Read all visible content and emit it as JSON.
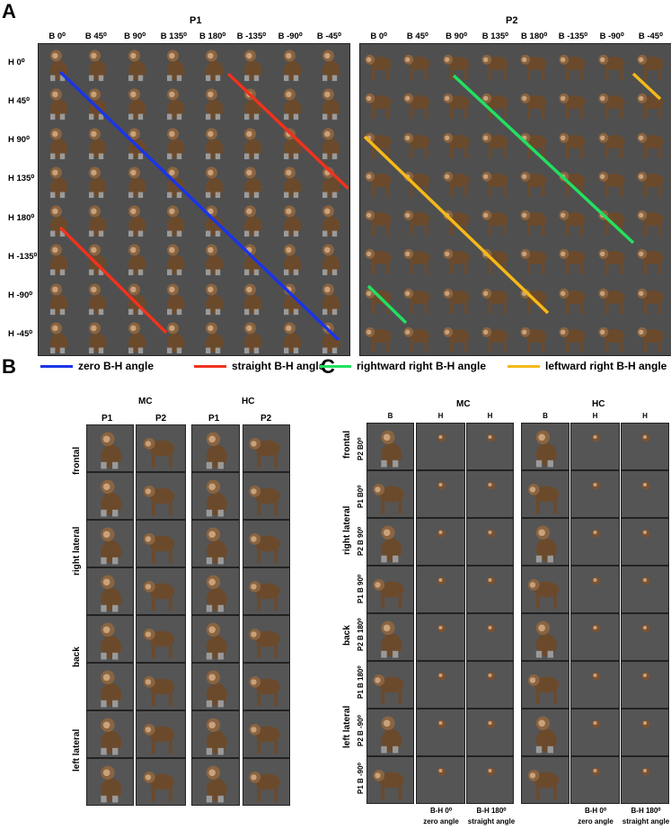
{
  "panels": {
    "a": "A",
    "b": "B",
    "c": "C"
  },
  "panelA": {
    "p1_title": "P1",
    "p2_title": "P2",
    "body_cols": [
      "B 0⁰",
      "B 45⁰",
      "B 90⁰",
      "B 135⁰",
      "B 180⁰",
      "B -135⁰",
      "B -90⁰",
      "B -45⁰"
    ],
    "head_rows": [
      "H 0⁰",
      "H 45⁰",
      "H 90⁰",
      "H 135⁰",
      "H 180⁰",
      "H -135⁰",
      "H -90⁰",
      "H -45⁰"
    ],
    "legend": [
      {
        "label": "zero B-H angle",
        "color": "#1a35e8"
      },
      {
        "label": "straight B-H angle",
        "color": "#f0321e"
      },
      {
        "label": "rightward right B-H angle",
        "color": "#22e060"
      },
      {
        "label": "leftward right B-H angle",
        "color": "#f5b91a"
      }
    ]
  },
  "panelB": {
    "mc": "MC",
    "hc": "HC",
    "p1": "P1",
    "p2": "P2",
    "rows": [
      "frontal",
      "right lateral",
      "back",
      "left lateral"
    ]
  },
  "panelC": {
    "mc": "MC",
    "hc": "HC",
    "b": "B",
    "h": "H",
    "groups": [
      "frontal",
      "right lateral",
      "back",
      "left lateral"
    ],
    "row_labels": [
      "P2 B0⁰",
      "P1 B0⁰",
      "P2 B 90⁰",
      "P1 B 90⁰",
      "P2 B 180⁰",
      "P1 B 180⁰",
      "P2 B -90⁰",
      "P1 B -90⁰"
    ],
    "foot_zero": "B-H 0⁰",
    "foot_zero_sub": "zero angle",
    "foot_straight": "B-H 180⁰",
    "foot_straight_sub": "straight angle"
  }
}
